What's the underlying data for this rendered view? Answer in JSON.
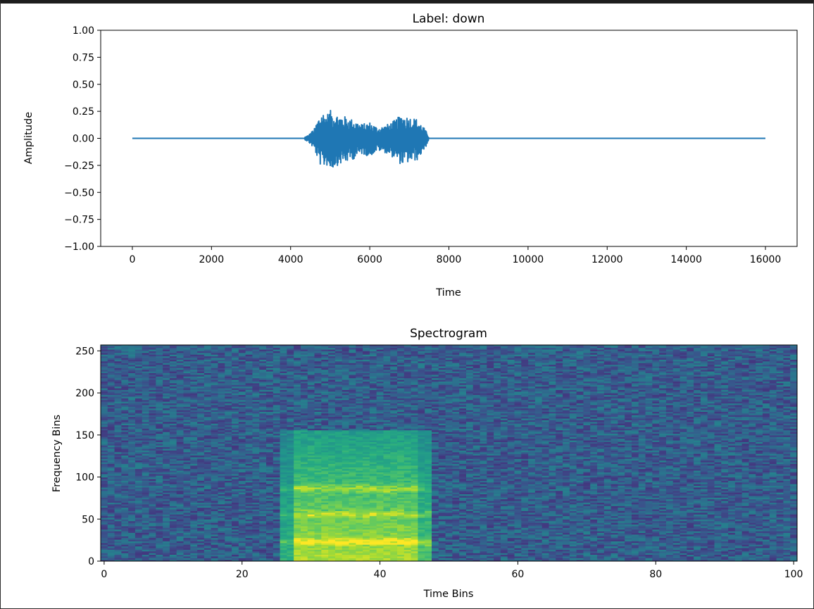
{
  "colors": {
    "waveform": "#1f77b4",
    "axes": "#000000",
    "frame_top": "#1e1e1e"
  },
  "colormap": "viridis",
  "chart_data": [
    {
      "type": "line",
      "title": "Label: down",
      "xlabel": "Time",
      "ylabel": "Amplitude",
      "xlim": [
        -800,
        16800
      ],
      "ylim": [
        -1.0,
        1.0
      ],
      "x_ticks": [
        0,
        2000,
        4000,
        6000,
        8000,
        10000,
        12000,
        14000,
        16000
      ],
      "x_tick_labels": [
        "0",
        "2000",
        "4000",
        "6000",
        "8000",
        "10000",
        "12000",
        "14000",
        "16000"
      ],
      "y_ticks": [
        1.0,
        0.75,
        0.5,
        0.25,
        0.0,
        -0.25,
        -0.5,
        -0.75,
        -1.0
      ],
      "y_tick_labels": [
        "1.00",
        "0.75",
        "0.50",
        "0.25",
        "0.00",
        "−0.25",
        "−0.50",
        "−0.75",
        "−1.00"
      ],
      "grid": false,
      "series": [
        {
          "n_samples": 16000,
          "silent_value": 0.0,
          "active_region": [
            4350,
            7500
          ],
          "peak_max": 0.27,
          "peak_min": -0.33,
          "envelope": [
            [
              4350,
              0.01
            ],
            [
              4450,
              0.03
            ],
            [
              4600,
              0.09
            ],
            [
              4700,
              0.19
            ],
            [
              4800,
              0.25
            ],
            [
              4900,
              0.22
            ],
            [
              5000,
              0.26
            ],
            [
              5200,
              0.22
            ],
            [
              5400,
              0.2
            ],
            [
              5600,
              0.17
            ],
            [
              5800,
              0.13
            ],
            [
              6000,
              0.15
            ],
            [
              6200,
              0.1
            ],
            [
              6400,
              0.12
            ],
            [
              6600,
              0.16
            ],
            [
              6800,
              0.22
            ],
            [
              7000,
              0.2
            ],
            [
              7200,
              0.18
            ],
            [
              7350,
              0.11
            ],
            [
              7450,
              0.05
            ],
            [
              7500,
              0.0
            ]
          ]
        }
      ]
    },
    {
      "type": "heatmap",
      "title": "Spectrogram",
      "xlabel": "Time Bins",
      "ylabel": "Frequency Bins",
      "xlim": [
        -0.5,
        100.5
      ],
      "ylim": [
        0,
        257
      ],
      "x_ticks": [
        0,
        20,
        40,
        60,
        80,
        100
      ],
      "x_tick_labels": [
        "0",
        "20",
        "40",
        "60",
        "80",
        "100"
      ],
      "y_ticks": [
        0,
        50,
        100,
        150,
        200,
        250
      ],
      "y_tick_labels": [
        "0",
        "50",
        "100",
        "150",
        "200",
        "250"
      ],
      "n_time_bins": 101,
      "n_freq_bins": 257,
      "active_time_bins": [
        26,
        47
      ],
      "active_max_freq_bin": 155,
      "background_level": 0.3,
      "high_energy_bands": [
        {
          "freq_bin": 22,
          "level": 0.98
        },
        {
          "freq_bin": 55,
          "level": 0.85
        },
        {
          "freq_bin": 85,
          "level": 0.8
        }
      ]
    }
  ]
}
